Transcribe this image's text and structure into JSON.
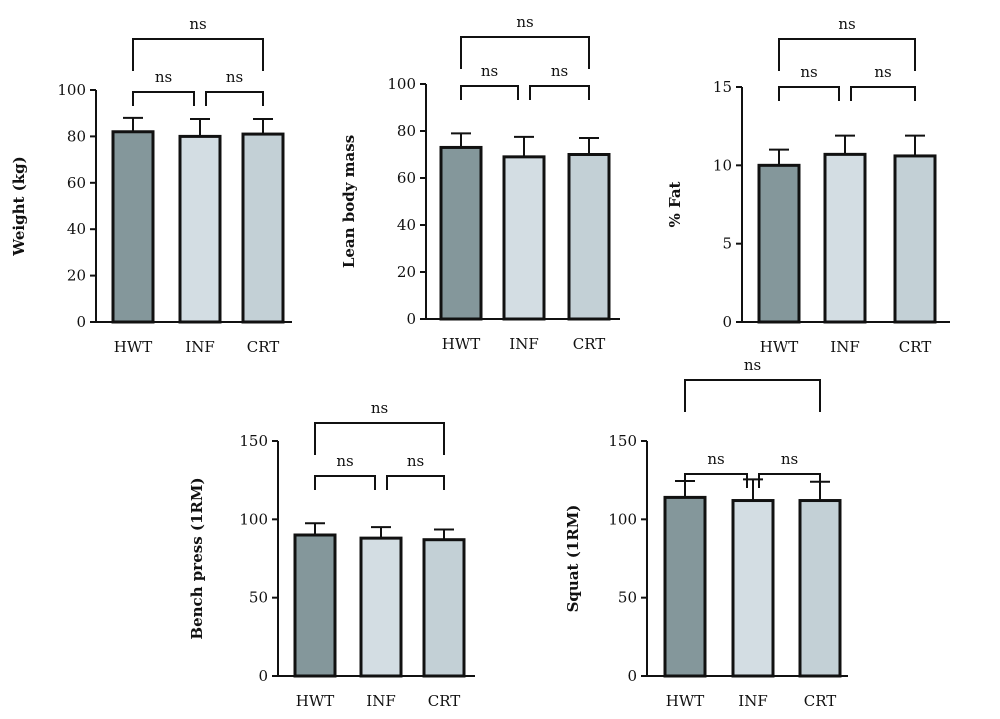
{
  "chart_data": [
    {
      "type": "bar",
      "categories": [
        "HWT",
        "INF",
        "CRT"
      ],
      "values": [
        82,
        80,
        81
      ],
      "errors": [
        6,
        7.5,
        6.5
      ],
      "ylabel": "Weight (kg)",
      "ylim": [
        0,
        100
      ],
      "yticks": [
        "0",
        "20",
        "40",
        "60",
        "80",
        "100"
      ],
      "comparisons": [
        {
          "pair": [
            "HWT",
            "INF"
          ],
          "label": "ns"
        },
        {
          "pair": [
            "INF",
            "CRT"
          ],
          "label": "ns"
        },
        {
          "pair": [
            "HWT",
            "CRT"
          ],
          "label": "ns"
        }
      ]
    },
    {
      "type": "bar",
      "categories": [
        "HWT",
        "INF",
        "CRT"
      ],
      "values": [
        73,
        69,
        70
      ],
      "errors": [
        6,
        8.5,
        7
      ],
      "ylabel": "Lean body mass",
      "ylim": [
        0,
        100
      ],
      "yticks": [
        "0",
        "20",
        "40",
        "60",
        "80",
        "100"
      ],
      "comparisons": [
        {
          "pair": [
            "HWT",
            "INF"
          ],
          "label": "ns"
        },
        {
          "pair": [
            "INF",
            "CRT"
          ],
          "label": "ns"
        },
        {
          "pair": [
            "HWT",
            "CRT"
          ],
          "label": "ns"
        }
      ]
    },
    {
      "type": "bar",
      "categories": [
        "HWT",
        "INF",
        "CRT"
      ],
      "values": [
        10,
        10.7,
        10.6
      ],
      "errors": [
        1,
        1.2,
        1.3
      ],
      "ylabel": "% Fat",
      "ylim": [
        0,
        15
      ],
      "yticks": [
        "0",
        "5",
        "10",
        "15"
      ],
      "comparisons": [
        {
          "pair": [
            "HWT",
            "INF"
          ],
          "label": "ns"
        },
        {
          "pair": [
            "INF",
            "CRT"
          ],
          "label": "ns"
        },
        {
          "pair": [
            "HWT",
            "CRT"
          ],
          "label": "ns"
        }
      ]
    },
    {
      "type": "bar",
      "categories": [
        "HWT",
        "INF",
        "CRT"
      ],
      "values": [
        90,
        88,
        87
      ],
      "errors": [
        7.5,
        7,
        6.5
      ],
      "ylabel": "Bench press (1RM)",
      "ylim": [
        0,
        150
      ],
      "yticks": [
        "0",
        "50",
        "100",
        "150"
      ],
      "comparisons": [
        {
          "pair": [
            "HWT",
            "INF"
          ],
          "label": "ns"
        },
        {
          "pair": [
            "INF",
            "CRT"
          ],
          "label": "ns"
        },
        {
          "pair": [
            "HWT",
            "CRT"
          ],
          "label": "ns"
        }
      ]
    },
    {
      "type": "bar",
      "categories": [
        "HWT",
        "INF",
        "CRT"
      ],
      "values": [
        114,
        112,
        112
      ],
      "errors": [
        10.5,
        13.5,
        12
      ],
      "ylabel": "Squat (1RM)",
      "ylim": [
        0,
        150
      ],
      "yticks": [
        "0",
        "50",
        "100",
        "150"
      ],
      "comparisons": [
        {
          "pair": [
            "HWT",
            "INF"
          ],
          "label": "ns"
        },
        {
          "pair": [
            "INF",
            "CRT"
          ],
          "label": "ns"
        },
        {
          "pair": [
            "HWT",
            "CRT"
          ],
          "label": "ns"
        }
      ]
    }
  ],
  "colors": {
    "bar_fills": [
      "#84979b",
      "#d3dde3",
      "#c3d0d6"
    ],
    "stroke": "#111111"
  }
}
